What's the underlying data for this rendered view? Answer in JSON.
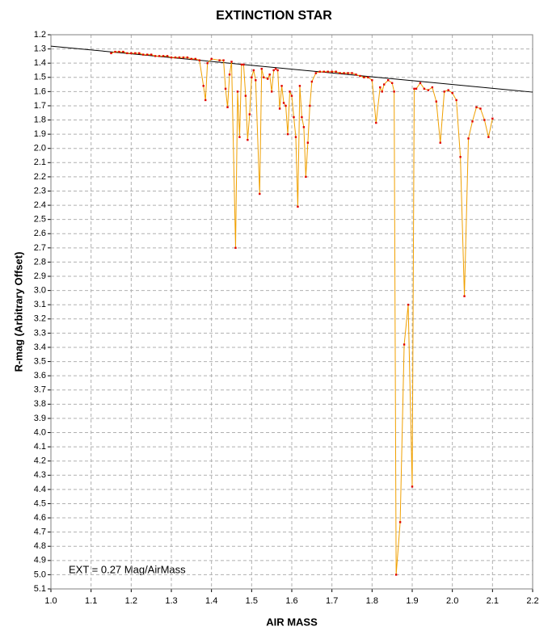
{
  "chart_data": {
    "type": "line",
    "title": "EXTINCTION STAR",
    "x_label": "AIR MASS",
    "y_label": "R-mag (Arbitrary Offset)",
    "annotation": "EXT = 0.27 Mag/AirMass",
    "xlim": [
      1.0,
      2.2
    ],
    "ylim": [
      1.2,
      5.1
    ],
    "y_inverted": true,
    "grid": true,
    "xticks": [
      {
        "value": 1.0,
        "label": "1.0"
      },
      1.1,
      1.2,
      1.3,
      1.4,
      1.5,
      1.6,
      1.7,
      1.8,
      1.9,
      {
        "value": 2.0,
        "label": "2.0"
      },
      2.1,
      2.2
    ],
    "yticks": [
      1.2,
      1.3,
      1.4,
      1.5,
      1.6,
      1.7,
      1.8,
      1.9,
      {
        "value": 2.0,
        "label": "2.0"
      },
      2.1,
      2.2,
      2.3,
      2.4,
      2.5,
      2.6,
      2.7,
      2.8,
      2.9,
      {
        "value": 3.0,
        "label": "3.0"
      },
      3.1,
      3.2,
      3.3,
      3.4,
      3.5,
      3.6,
      3.7,
      3.8,
      3.9,
      {
        "value": 4.0,
        "label": "4.0"
      },
      4.1,
      4.2,
      4.3,
      4.4,
      4.5,
      4.6,
      4.7,
      4.8,
      4.9,
      {
        "value": 5.0,
        "label": "5.0"
      },
      5.1
    ],
    "trend_line": {
      "color": "#000000",
      "x": [
        1.0,
        2.2
      ],
      "y": [
        1.28,
        1.604
      ]
    },
    "series": [
      {
        "color": "#f0a000",
        "marker_color": "#e00000",
        "x": [
          1.15,
          1.16,
          1.17,
          1.18,
          1.19,
          1.2,
          1.21,
          1.22,
          1.23,
          1.24,
          1.25,
          1.26,
          1.27,
          1.28,
          1.29,
          1.3,
          1.31,
          1.32,
          1.33,
          1.34,
          1.35,
          1.36,
          1.37,
          1.38,
          1.385,
          1.39,
          1.4,
          1.42,
          1.43,
          1.435,
          1.44,
          1.445,
          1.45,
          1.46,
          1.465,
          1.47,
          1.475,
          1.48,
          1.485,
          1.49,
          1.495,
          1.5,
          1.505,
          1.51,
          1.52,
          1.525,
          1.53,
          1.54,
          1.545,
          1.55,
          1.555,
          1.56,
          1.565,
          1.57,
          1.575,
          1.58,
          1.585,
          1.59,
          1.595,
          1.6,
          1.605,
          1.61,
          1.615,
          1.62,
          1.625,
          1.63,
          1.635,
          1.64,
          1.645,
          1.65,
          1.66,
          1.67,
          1.68,
          1.69,
          1.7,
          1.71,
          1.72,
          1.73,
          1.74,
          1.75,
          1.76,
          1.77,
          1.78,
          1.79,
          1.8,
          1.81,
          1.82,
          1.825,
          1.83,
          1.84,
          1.85,
          1.855,
          1.86,
          1.87,
          1.88,
          1.89,
          1.9,
          1.905,
          1.91,
          1.92,
          1.93,
          1.94,
          1.95,
          1.96,
          1.97,
          1.98,
          1.99,
          2.0,
          2.01,
          2.02,
          2.03,
          2.04,
          2.05,
          2.06,
          2.07,
          2.08,
          2.09,
          2.1
        ],
        "values": [
          1.33,
          1.32,
          1.32,
          1.32,
          1.33,
          1.33,
          1.33,
          1.33,
          1.34,
          1.34,
          1.34,
          1.35,
          1.35,
          1.35,
          1.35,
          1.36,
          1.36,
          1.36,
          1.36,
          1.36,
          1.37,
          1.37,
          1.38,
          1.56,
          1.66,
          1.4,
          1.37,
          1.38,
          1.38,
          1.58,
          1.71,
          1.48,
          1.39,
          2.7,
          1.6,
          1.92,
          1.41,
          1.41,
          1.63,
          1.94,
          1.76,
          1.5,
          1.45,
          1.52,
          2.32,
          1.44,
          1.5,
          1.51,
          1.48,
          1.6,
          1.45,
          1.44,
          1.45,
          1.72,
          1.56,
          1.68,
          1.7,
          1.9,
          1.6,
          1.63,
          1.78,
          1.92,
          2.41,
          1.56,
          1.78,
          1.85,
          2.2,
          1.96,
          1.7,
          1.53,
          1.47,
          1.46,
          1.46,
          1.46,
          1.46,
          1.46,
          1.47,
          1.47,
          1.47,
          1.47,
          1.48,
          1.49,
          1.5,
          1.5,
          1.52,
          1.82,
          1.57,
          1.6,
          1.55,
          1.52,
          1.54,
          1.6,
          5.0,
          4.63,
          3.38,
          3.1,
          4.38,
          1.58,
          1.58,
          1.54,
          1.58,
          1.59,
          1.57,
          1.67,
          1.96,
          1.6,
          1.59,
          1.61,
          1.66,
          2.06,
          3.04,
          1.93,
          1.81,
          1.71,
          1.72,
          1.8,
          1.92,
          1.79
        ]
      }
    ]
  }
}
